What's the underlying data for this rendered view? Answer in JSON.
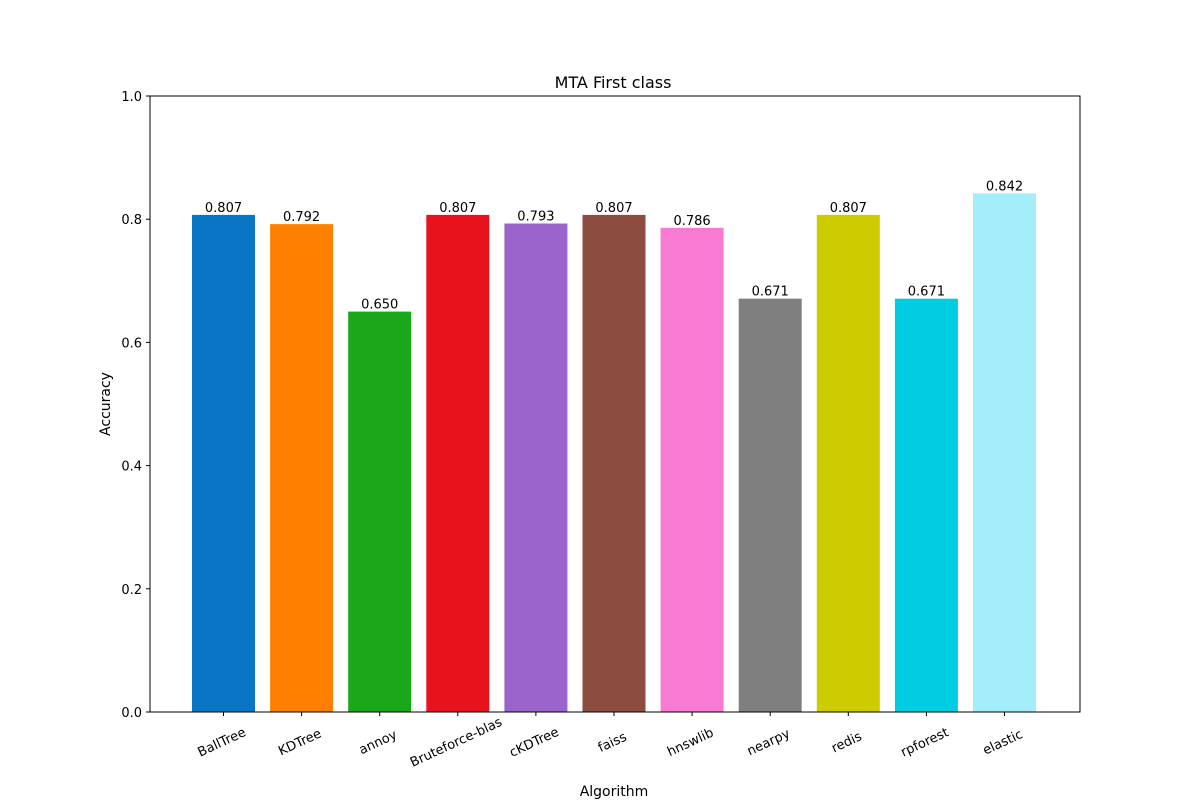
{
  "chart_data": {
    "type": "bar",
    "title": "MTA First class",
    "xlabel": "Algorithm",
    "ylabel": "Accuracy",
    "categories": [
      "BallTree",
      "KDTree",
      "annoy",
      "Bruteforce-blas",
      "cKDTree",
      "faiss",
      "hnswlib",
      "nearpy",
      "redis",
      "rpforest",
      "elastic"
    ],
    "values": [
      0.807,
      0.792,
      0.65,
      0.807,
      0.793,
      0.807,
      0.786,
      0.671,
      0.807,
      0.671,
      0.842
    ],
    "value_labels": [
      "0.807",
      "0.792",
      "0.650",
      "0.807",
      "0.793",
      "0.807",
      "0.786",
      "0.671",
      "0.807",
      "0.671",
      "0.842"
    ],
    "colors": [
      "#0a75c2",
      "#ff7f00",
      "#1aa81a",
      "#e8121c",
      "#9b64cc",
      "#8c4c40",
      "#f97ad2",
      "#7f7f7f",
      "#cccc00",
      "#00cde2",
      "#a4edfa"
    ],
    "ylim": [
      0,
      1.0
    ],
    "yticks": [
      0.0,
      0.2,
      0.4,
      0.6,
      0.8,
      1.0
    ],
    "ytick_labels": [
      "0.0",
      "0.2",
      "0.4",
      "0.6",
      "0.8",
      "1.0"
    ],
    "grid": false,
    "legend": "none"
  }
}
